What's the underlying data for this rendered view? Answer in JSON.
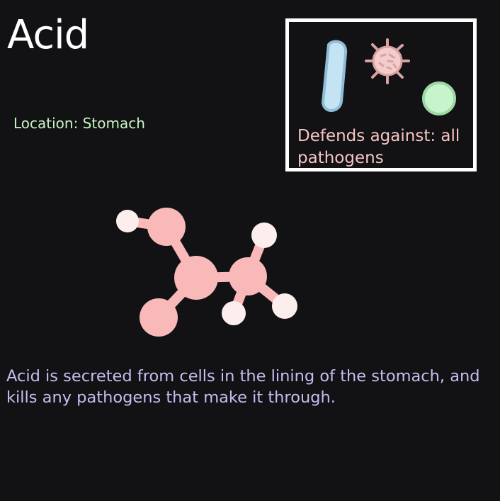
{
  "card": {
    "title": "Acid",
    "location": "Location: Stomach",
    "defense": {
      "text": "Defends against: all pathogens",
      "icons": [
        "bacillus-icon",
        "virus-icon",
        "coccus-icon"
      ]
    },
    "illustration": "molecule-icon",
    "description": "Acid is secreted from cells in the lining of the stomach, and kills any pathogens that make it through."
  },
  "colors": {
    "background": "#121214",
    "title": "#ffffff",
    "location": "#c8f5c4",
    "defense_text": "#f7c4c4",
    "description": "#c2bff0",
    "molecule": "#f9b9b9",
    "hydrogen": "#fdeeee",
    "bacillus": "#c4e4f4",
    "virus": "#f4cccc",
    "coccus": "#c8f4cc"
  }
}
